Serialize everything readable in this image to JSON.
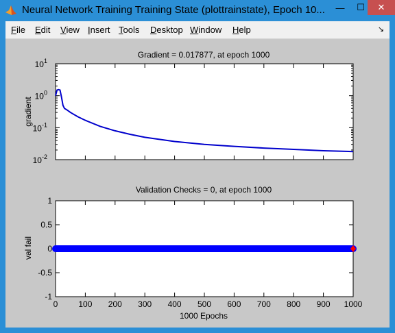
{
  "window": {
    "title": "Neural Network Training Training State (plottrainstate), Epoch 10...",
    "minimize_glyph": "—",
    "maximize_glyph": "☐",
    "close_glyph": "✕",
    "icon": "matlab-icon"
  },
  "menu": {
    "items": [
      {
        "key": "F",
        "rest": "ile"
      },
      {
        "key": "E",
        "rest": "dit"
      },
      {
        "key": "V",
        "rest": "iew"
      },
      {
        "key": "I",
        "rest": "nsert"
      },
      {
        "key": "T",
        "rest": "ools"
      },
      {
        "key": "D",
        "rest": "esktop"
      },
      {
        "key": "W",
        "rest": "indow"
      },
      {
        "key": "H",
        "rest": "elp"
      }
    ],
    "dock_glyph": "↘"
  },
  "chart_data": [
    {
      "type": "line",
      "title": "Gradient = 0.017877, at epoch 1000",
      "xlabel": "",
      "ylabel": "gradient",
      "yscale": "log",
      "xlim": [
        0,
        1000
      ],
      "ylim": [
        0.01,
        10
      ],
      "ytick_labels": [
        {
          "base": "10",
          "exp": "1"
        },
        {
          "base": "10",
          "exp": "0"
        },
        {
          "base": "10",
          "exp": "-1"
        },
        {
          "base": "10",
          "exp": "-2"
        }
      ],
      "series_color": "#0000cc",
      "x": [
        0,
        5,
        10,
        15,
        20,
        25,
        30,
        40,
        50,
        75,
        100,
        150,
        200,
        250,
        300,
        400,
        500,
        600,
        700,
        800,
        900,
        1000
      ],
      "y": [
        1.0,
        1.5,
        1.55,
        1.5,
        0.9,
        0.5,
        0.4,
        0.35,
        0.3,
        0.22,
        0.17,
        0.11,
        0.08,
        0.062,
        0.05,
        0.037,
        0.03,
        0.026,
        0.023,
        0.021,
        0.019,
        0.0179
      ]
    },
    {
      "type": "line",
      "title": "Validation Checks = 0, at epoch 1000",
      "xlabel": "1000 Epochs",
      "ylabel": "val fail",
      "xlim": [
        0,
        1000
      ],
      "ylim": [
        -1,
        1
      ],
      "xticks": [
        0,
        100,
        200,
        300,
        400,
        500,
        600,
        700,
        800,
        900,
        1000
      ],
      "xtick_labels": [
        "0",
        "100",
        "200",
        "300",
        "400",
        "500",
        "600",
        "700",
        "800",
        "900",
        "1000"
      ],
      "yticks": [
        1,
        0.5,
        0,
        -0.5,
        -1
      ],
      "ytick_labels": [
        "1",
        "0.5",
        "0",
        "-0.5",
        "-1"
      ],
      "series_color": "#0000ff",
      "end_marker_color": "#ff0000",
      "x": [
        0,
        1000
      ],
      "y": [
        0,
        0
      ]
    }
  ]
}
